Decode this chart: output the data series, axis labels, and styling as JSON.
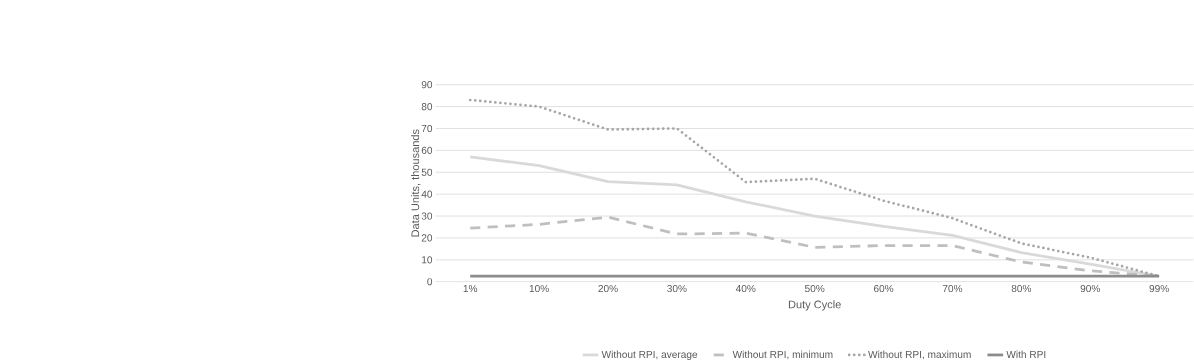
{
  "chart_data": {
    "type": "line",
    "xlabel": "Duty Cycle",
    "ylabel": "Data Units, thousands",
    "categories": [
      "1%",
      "10%",
      "20%",
      "30%",
      "40%",
      "50%",
      "60%",
      "70%",
      "80%",
      "90%",
      "99%"
    ],
    "series": [
      {
        "name": "Without RPI, average",
        "color": "#d9d9d9",
        "line_style": "solid",
        "values": [
          57,
          53,
          45.7,
          44.2,
          36.5,
          30,
          25.3,
          21.2,
          13.3,
          8,
          2.5
        ]
      },
      {
        "name": "Without RPI, minimum",
        "color": "#bfbfbf",
        "line_style": "dashed",
        "values": [
          24.5,
          26.2,
          29.5,
          21.8,
          22.2,
          15.7,
          16.5,
          16.5,
          9,
          5,
          2.5
        ]
      },
      {
        "name": "Without RPI, maximum",
        "color": "#a6a6a6",
        "line_style": "dotted",
        "values": [
          83,
          80,
          69.5,
          70,
          45.5,
          47,
          37,
          29,
          17.5,
          11,
          2.5
        ]
      },
      {
        "name": "With RPI",
        "color": "#8c8c8c",
        "line_style": "solid",
        "values": [
          2.5,
          2.5,
          2.5,
          2.5,
          2.5,
          2.5,
          2.5,
          2.5,
          2.5,
          2.5,
          2.5
        ]
      }
    ],
    "ylim": [
      0,
      90
    ],
    "yticks": [
      0,
      10,
      20,
      30,
      40,
      50,
      60,
      70,
      80,
      90
    ],
    "grid": "y",
    "legend": "bottom",
    "marker": "none"
  }
}
